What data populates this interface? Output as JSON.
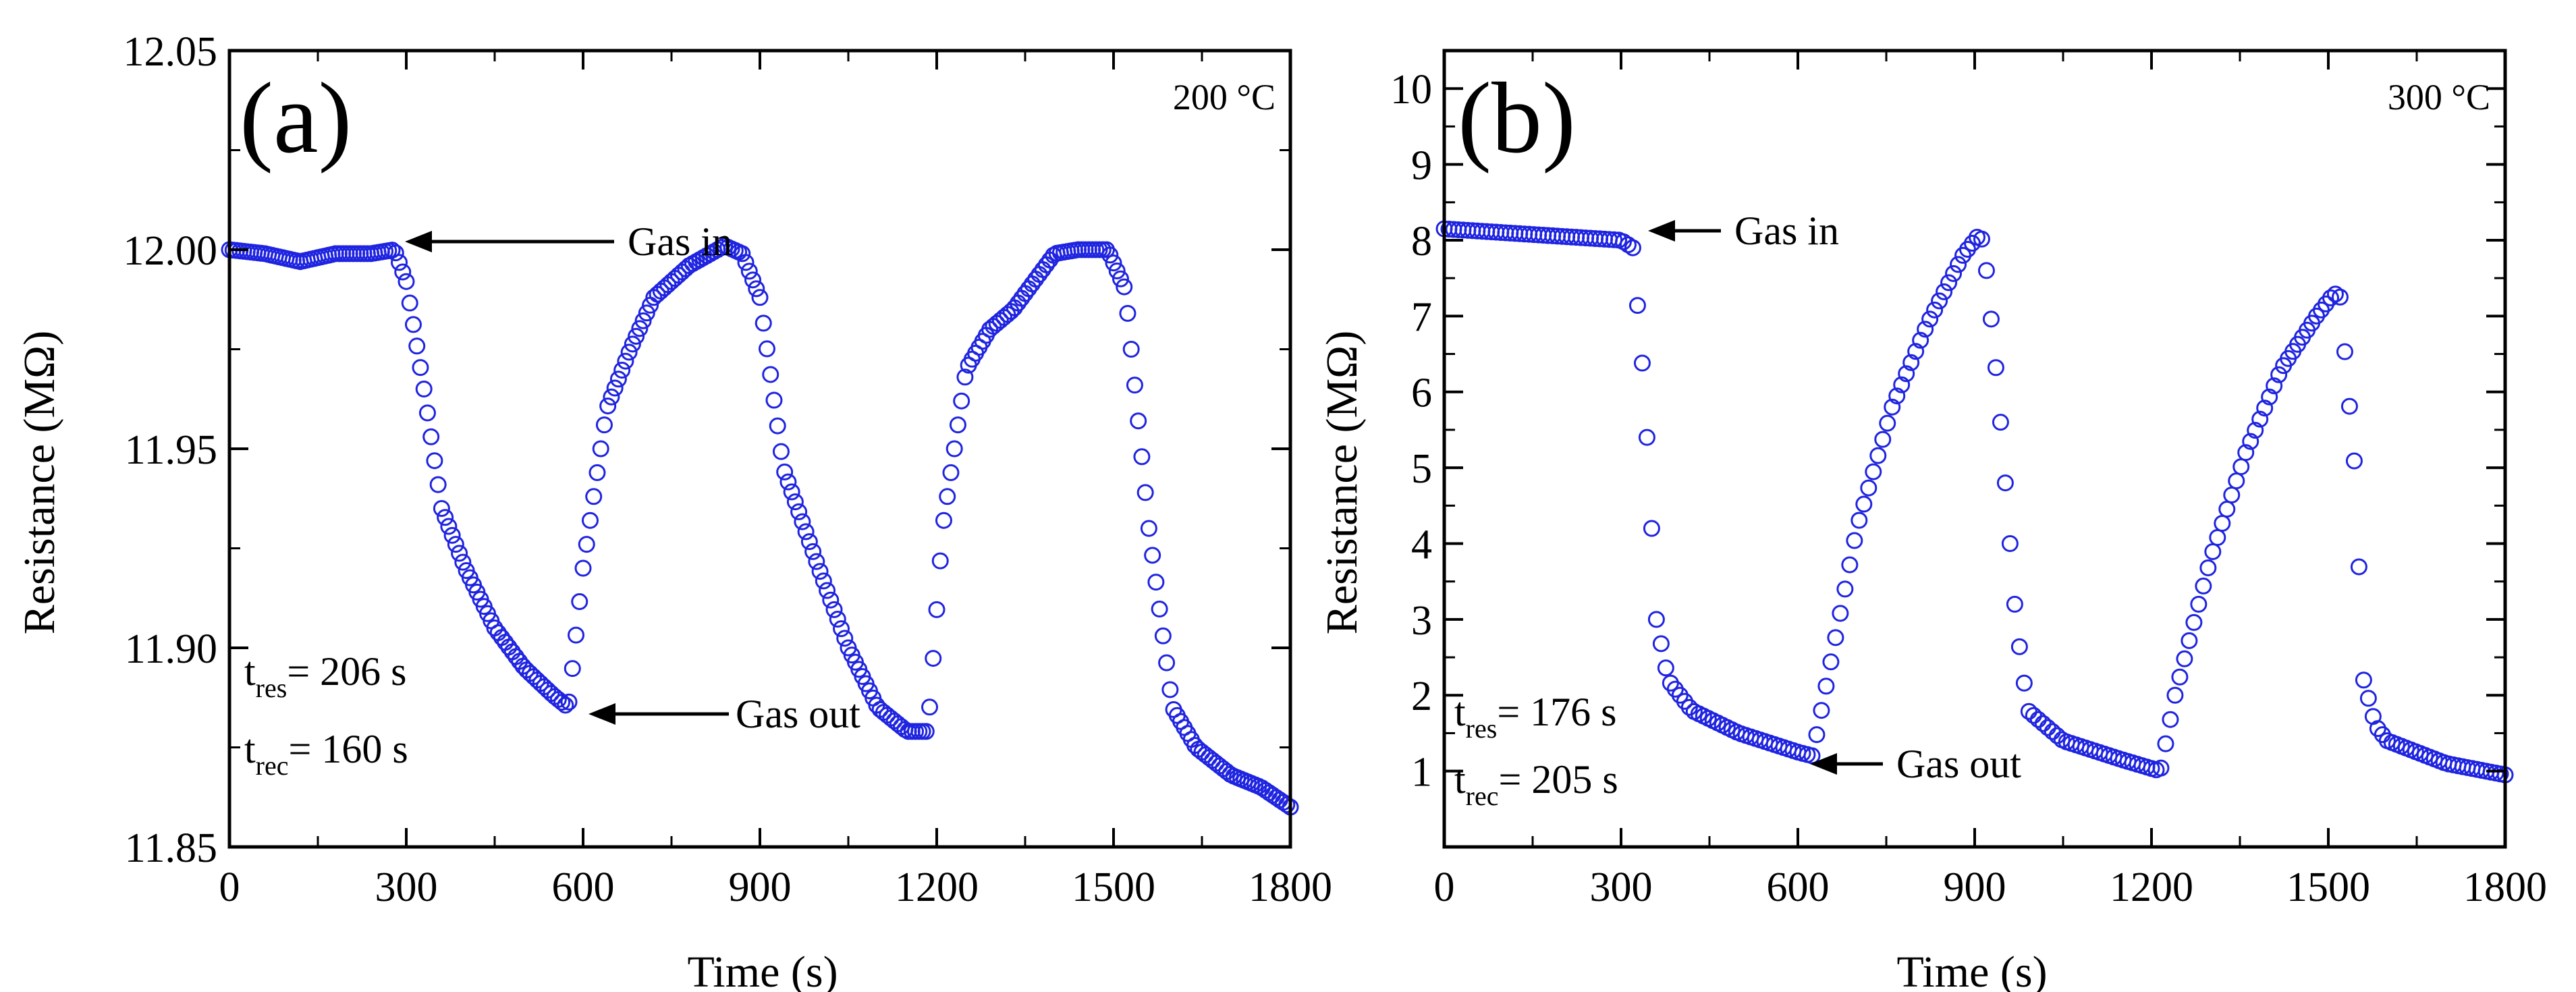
{
  "colors": {
    "series": "#1f24e0",
    "axis": "#000000"
  },
  "chart_data": [
    {
      "type": "scatter",
      "panel_label": "(a)",
      "temperature": "200 °C",
      "xlabel": "Time (s)",
      "ylabel": "Resistance (MΩ)",
      "xlim": [
        0,
        1800
      ],
      "ylim": [
        11.85,
        12.05
      ],
      "xticks": [
        0,
        300,
        600,
        900,
        1200,
        1500,
        1800
      ],
      "yticks": [
        "11.85",
        "11.90",
        "11.95",
        "12.00",
        "12.05"
      ],
      "annotations": [
        {
          "text": "Gas in",
          "at": [
            280,
            12.001
          ]
        },
        {
          "text": "Gas out",
          "at": [
            575,
            11.885
          ]
        }
      ],
      "response_time": {
        "label": "res",
        "value": "206 s"
      },
      "recovery_time": {
        "label": "rec",
        "value": "160 s"
      },
      "series": [
        {
          "name": "200 °C",
          "x": [
            0,
            60,
            120,
            180,
            240,
            280,
            300,
            330,
            360,
            400,
            450,
            500,
            550,
            575,
            600,
            640,
            680,
            720,
            780,
            840,
            870,
            900,
            940,
            1000,
            1050,
            1100,
            1150,
            1185,
            1210,
            1250,
            1290,
            1330,
            1400,
            1440,
            1490,
            1520,
            1560,
            1600,
            1640,
            1700,
            1750,
            1800
          ],
          "y": [
            12.0,
            11.999,
            11.997,
            11.999,
            11.999,
            12.0,
            11.992,
            11.965,
            11.935,
            11.92,
            11.905,
            11.895,
            11.888,
            11.885,
            11.92,
            11.96,
            11.975,
            11.988,
            11.996,
            12.001,
            11.999,
            11.988,
            11.945,
            11.92,
            11.9,
            11.885,
            11.879,
            11.879,
            11.93,
            11.97,
            11.98,
            11.985,
            11.999,
            12.0,
            12.0,
            11.99,
            11.93,
            11.885,
            11.875,
            11.868,
            11.865,
            11.86
          ]
        }
      ]
    },
    {
      "type": "scatter",
      "panel_label": "(b)",
      "temperature": "300 °C",
      "xlabel": "Time (s)",
      "ylabel": "Resistance (MΩ)",
      "xlim": [
        0,
        1800
      ],
      "ylim": [
        0,
        10.5
      ],
      "xticks": [
        0,
        300,
        600,
        900,
        1200,
        1500,
        1800
      ],
      "yticks": [
        "1",
        "2",
        "3",
        "4",
        "5",
        "6",
        "7",
        "8",
        "9",
        "10"
      ],
      "annotations": [
        {
          "text": "Gas in",
          "at": [
            330,
            8.1
          ]
        },
        {
          "text": "Gas out",
          "at": [
            625,
            1.2
          ]
        }
      ],
      "response_time": {
        "label": "res",
        "value": "176 s"
      },
      "recovery_time": {
        "label": "rec",
        "value": "205 s"
      },
      "series": [
        {
          "name": "300 °C",
          "x": [
            0,
            100,
            200,
            300,
            320,
            340,
            360,
            380,
            420,
            500,
            600,
            625,
            650,
            700,
            760,
            820,
            880,
            905,
            915,
            940,
            970,
            990,
            1050,
            1150,
            1215,
            1240,
            1300,
            1360,
            1420,
            1480,
            1510,
            1520,
            1545,
            1560,
            1580,
            1600,
            1700,
            1800
          ],
          "y": [
            8.15,
            8.1,
            8.05,
            8.0,
            7.9,
            6.0,
            3.0,
            2.2,
            1.8,
            1.5,
            1.25,
            1.2,
            2.2,
            4.2,
            5.8,
            6.9,
            7.8,
            8.05,
            8.0,
            6.0,
            3.0,
            1.8,
            1.4,
            1.15,
            1.0,
            2.0,
            3.8,
            5.2,
            6.3,
            7.0,
            7.3,
            7.25,
            5.0,
            2.2,
            1.6,
            1.4,
            1.1,
            0.95
          ]
        }
      ]
    }
  ]
}
